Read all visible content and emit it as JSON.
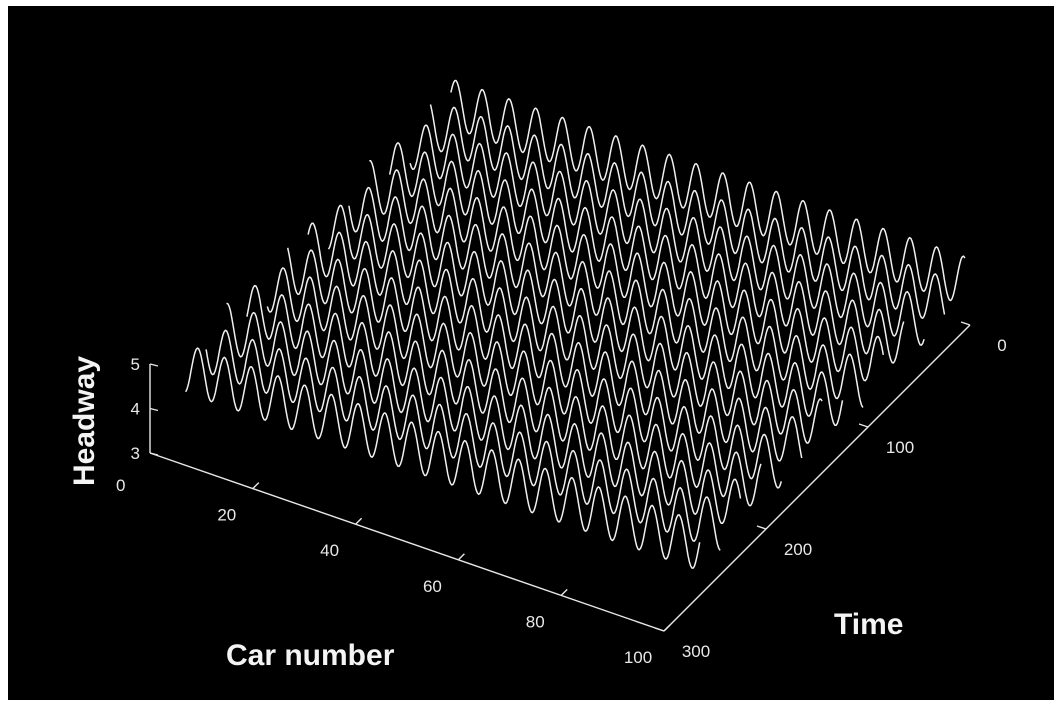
{
  "chart_data": {
    "type": "line",
    "subtype": "3d-waterfall",
    "background": "#000000",
    "line_color": "#f0f0f0",
    "xlabel": "Car number",
    "ylabel": "Time",
    "zlabel": "Headway",
    "xlim": [
      0,
      100
    ],
    "ylim": [
      0,
      300
    ],
    "zlim": [
      3,
      5
    ],
    "x_ticks": [
      20,
      40,
      60,
      80,
      100
    ],
    "x_tick_labels": [
      "20",
      "40",
      "60",
      "80",
      "100"
    ],
    "y_ticks": [
      0,
      100,
      200,
      300
    ],
    "y_tick_labels": [
      "0",
      "100",
      "200",
      "300"
    ],
    "z_ticks": [
      3,
      4,
      5
    ],
    "z_tick_labels": [
      "3",
      "4",
      "5"
    ],
    "corner_label": "0",
    "grid": false,
    "series_description_values": {
      "time_samples": [
        5,
        25,
        45,
        65,
        85,
        105,
        125,
        145,
        165,
        185,
        205,
        225,
        245,
        265
      ],
      "car_range": [
        0,
        100
      ],
      "headway_mean": 4.1,
      "headway_amplitude": 0.55,
      "wave_period_cars": 5.2
    }
  }
}
